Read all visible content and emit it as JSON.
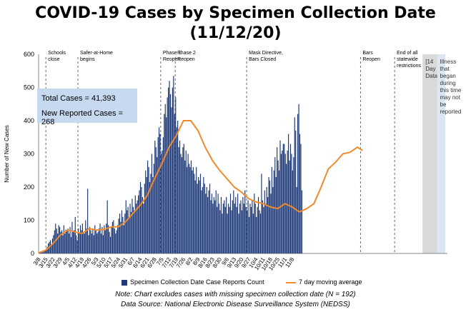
{
  "title_line1": "COVID-19 Cases by Specimen Collection Date",
  "title_line2": "(11/12/20)",
  "ylabel": "Number of New Cases",
  "info_box": {
    "total": "Total Cases = 41,393",
    "new_reported": "New Reported Cases = 268"
  },
  "legend": {
    "bars": "Specimen Collection Date Case Reports Count",
    "line": "7 day moving average"
  },
  "notes": {
    "note1": "Note: Chart excludes cases with missing specimen collection date (N = 192)",
    "note2": "Data Source: National Electronic Disease Surveillance System (NEDSS)"
  },
  "colors": {
    "bars": "#1f3a7a",
    "moving_average": "#f08a2c",
    "info_box": "#c6d9f0",
    "recent_shade_gray": "#d9d9d9",
    "recent_shade_blue": "#dce6f2"
  },
  "chart_data": {
    "type": "bar",
    "grid": false,
    "ylim": [
      0,
      600
    ],
    "yticks": [
      0,
      100,
      200,
      300,
      400,
      500,
      600
    ],
    "x_start_date": "3/8",
    "x_tick_labels": [
      "3/8",
      "3/15",
      "3/22",
      "3/29",
      "4/5",
      "4/12",
      "4/19",
      "4/26",
      "5/3",
      "5/10",
      "5/17",
      "5/24",
      "5/31",
      "6/7",
      "6/14",
      "6/21",
      "6/28",
      "7/5",
      "7/12",
      "7/19",
      "7/26",
      "8/2",
      "8/9",
      "8/16",
      "8/23",
      "8/30",
      "9/6",
      "9/13",
      "9/20",
      "9/27",
      "10/4",
      "10/11",
      "10/18",
      "10/25",
      "11/1",
      "11/8"
    ],
    "series": [
      {
        "name": "Specimen Collection Date Case Reports Count",
        "kind": "bar",
        "values": [
          2,
          3,
          2,
          5,
          4,
          8,
          10,
          15,
          20,
          30,
          35,
          40,
          28,
          45,
          55,
          70,
          90,
          75,
          60,
          85,
          80,
          65,
          70,
          55,
          85,
          60,
          72,
          68,
          75,
          60,
          80,
          50,
          95,
          65,
          70,
          110,
          55,
          40,
          75,
          60,
          85,
          70,
          90,
          65,
          60,
          100,
          75,
          195,
          55,
          80,
          70,
          60,
          75,
          55,
          85,
          70,
          60,
          65,
          75,
          90,
          60,
          80,
          55,
          85,
          70,
          90,
          160,
          85,
          65,
          50,
          80,
          95,
          100,
          75,
          60,
          70,
          85,
          105,
          120,
          95,
          130,
          110,
          85,
          120,
          160,
          130,
          140,
          110,
          150,
          125,
          165,
          140,
          130,
          175,
          150,
          160,
          175,
          190,
          215,
          200,
          170,
          150,
          210,
          250,
          230,
          280,
          260,
          215,
          240,
          300,
          230,
          270,
          340,
          320,
          290,
          350,
          380,
          360,
          300,
          310,
          350,
          420,
          450,
          410,
          470,
          500,
          520,
          480,
          440,
          500,
          535,
          420,
          470,
          380,
          400,
          320,
          340,
          300,
          290,
          320,
          330,
          280,
          310,
          260,
          300,
          270,
          260,
          280,
          250,
          260,
          240,
          220,
          260,
          210,
          230,
          220,
          240,
          190,
          200,
          230,
          210,
          180,
          200,
          170,
          190,
          210,
          160,
          180,
          150,
          170,
          160,
          190,
          140,
          180,
          150,
          130,
          170,
          120,
          150,
          160,
          140,
          170,
          120,
          150,
          140,
          180,
          130,
          160,
          190,
          150,
          170,
          140,
          180,
          120,
          150,
          160,
          130,
          170,
          150,
          190,
          140,
          130,
          160,
          110,
          150,
          140,
          160,
          120,
          180,
          150,
          110,
          140,
          170,
          130,
          120,
          240,
          160,
          140,
          190,
          150,
          200,
          170,
          230,
          220,
          180,
          260,
          200,
          250,
          290,
          230,
          320,
          280,
          250,
          340,
          300,
          310,
          330,
          330,
          300,
          270,
          310,
          360,
          280,
          330,
          300,
          250,
          290,
          410,
          370,
          200,
          420,
          450,
          360,
          330,
          190
        ],
        "color": "#1f3a7a"
      },
      {
        "name": "7 day moving average",
        "kind": "line",
        "points": [
          [
            0,
            2
          ],
          [
            7,
            10
          ],
          [
            14,
            30
          ],
          [
            21,
            55
          ],
          [
            28,
            70
          ],
          [
            35,
            65
          ],
          [
            42,
            60
          ],
          [
            49,
            75
          ],
          [
            56,
            70
          ],
          [
            63,
            72
          ],
          [
            70,
            80
          ],
          [
            77,
            80
          ],
          [
            84,
            95
          ],
          [
            91,
            120
          ],
          [
            98,
            145
          ],
          [
            105,
            175
          ],
          [
            112,
            225
          ],
          [
            119,
            270
          ],
          [
            126,
            320
          ],
          [
            133,
            355
          ],
          [
            140,
            400
          ],
          [
            147,
            400
          ],
          [
            154,
            370
          ],
          [
            161,
            320
          ],
          [
            168,
            280
          ],
          [
            175,
            250
          ],
          [
            182,
            225
          ],
          [
            189,
            200
          ],
          [
            196,
            185
          ],
          [
            203,
            165
          ],
          [
            210,
            155
          ],
          [
            217,
            150
          ],
          [
            224,
            140
          ],
          [
            231,
            135
          ],
          [
            238,
            150
          ],
          [
            245,
            140
          ],
          [
            252,
            125
          ],
          [
            259,
            135
          ],
          [
            266,
            150
          ],
          [
            273,
            200
          ],
          [
            280,
            255
          ],
          [
            287,
            275
          ],
          [
            294,
            300
          ],
          [
            301,
            305
          ],
          [
            308,
            320
          ],
          [
            313,
            310
          ]
        ],
        "color": "#f08a2c"
      }
    ],
    "annotations": [
      {
        "x_day": 7,
        "label": [
          "Schools",
          "close"
        ]
      },
      {
        "x_day": 38,
        "label": [
          "Safer-at-Home",
          "begins"
        ]
      },
      {
        "x_day": 118,
        "label": [
          "Phase 1",
          "Reopen"
        ]
      },
      {
        "x_day": 132,
        "label": [
          "Phase 2",
          "Reopen"
        ]
      },
      {
        "x_day": 201,
        "label": [
          "Mask Directive,",
          "Bars Closed"
        ]
      },
      {
        "x_day": 311,
        "label": [
          "Bars",
          "Reopen"
        ]
      },
      {
        "x_day": 344,
        "label": [
          "End of all",
          "statewide",
          "restrictions"
        ]
      }
    ],
    "shaded_regions": [
      {
        "label": [
          "[14",
          "Day",
          "Data]"
        ],
        "from_day": 371,
        "to_day": 385
      },
      {
        "label": [
          "Illness",
          "that",
          "began",
          "during",
          "this time",
          "may not",
          "be",
          "reported"
        ],
        "from_day": 385,
        "to_day": 393
      }
    ]
  }
}
